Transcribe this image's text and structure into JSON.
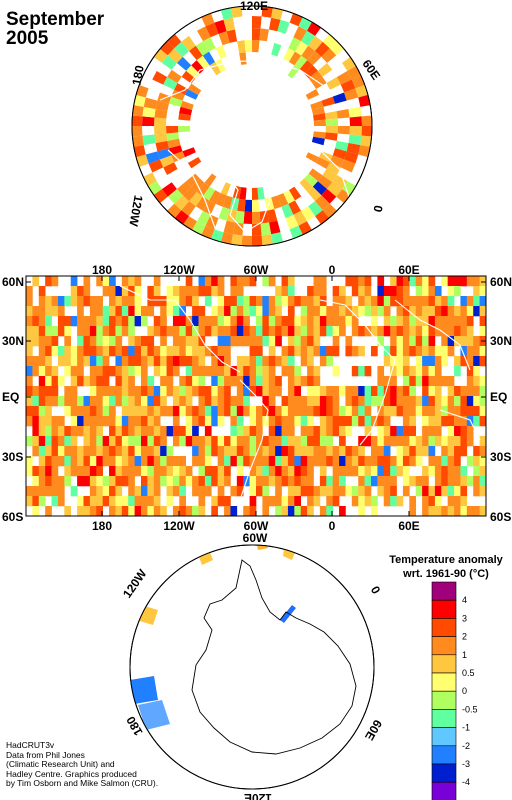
{
  "title": {
    "line1": "September",
    "line2": "2005"
  },
  "north_polar": {
    "labels": [
      "120E",
      "60E",
      "0",
      "120W",
      "180"
    ]
  },
  "world_map": {
    "top_lon": [
      "180",
      "120W",
      "60W",
      "0",
      "60E"
    ],
    "bottom_lon": [
      "180",
      "120W",
      "60W",
      "0",
      "60E"
    ],
    "left_lat": [
      "60N",
      "30N",
      "EQ",
      "30S",
      "60S"
    ],
    "right_lat": [
      "60N",
      "30N",
      "EQ",
      "30S",
      "60S"
    ]
  },
  "south_polar": {
    "labels": [
      "120W",
      "60W",
      "0",
      "60E",
      "120E",
      "180"
    ]
  },
  "legend": {
    "title_line1": "Temperature anomaly",
    "title_line2": "wrt. 1961-90  (°C)",
    "labels": [
      "4",
      "3",
      "2",
      "1",
      "0.5",
      "0",
      "-0.5",
      "-1",
      "-2",
      "-3",
      "-4"
    ],
    "colors": [
      "#a0007a",
      "#ff0000",
      "#ff4a00",
      "#ff8a1e",
      "#ffc640",
      "#ffff70",
      "#b0ff60",
      "#60ffa0",
      "#60c8ff",
      "#2080ff",
      "#0020d0",
      "#7a00d8"
    ]
  },
  "credits": [
    "HadCRUT3v",
    "Data from Phil Jones",
    "(Climatic Research Unit) and",
    "Hadley Centre.  Graphics produced",
    "by Tim Osborn and Mike Salmon (CRU)."
  ]
}
